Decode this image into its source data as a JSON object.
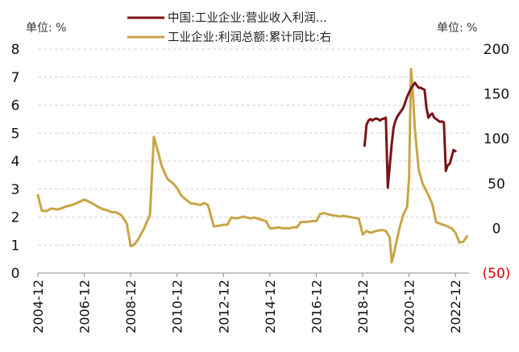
{
  "chart_data": {
    "type": "line",
    "left_unit_label": "单位: %",
    "right_unit_label": "单位: %",
    "legend_position": "top",
    "grid": true,
    "x_tick_labels": [
      "2004-12",
      "2006-12",
      "2008-12",
      "2010-12",
      "2012-12",
      "2014-12",
      "2016-12",
      "2018-12",
      "2020-12",
      "2022-12"
    ],
    "y_left": {
      "ylim": [
        0,
        8
      ],
      "ticks": [
        "0",
        "1",
        "2",
        "3",
        "4",
        "5",
        "6",
        "7",
        "8"
      ]
    },
    "y_right": {
      "ylim": [
        -50,
        200
      ],
      "ticks": [
        "(50)",
        "0",
        "50",
        "100",
        "150",
        "200"
      ],
      "negative_tick_color": "#e00000"
    },
    "series": [
      {
        "name": "中国:工业企业:营业收入利润...",
        "axis": "left",
        "color": "#7a1416",
        "x": [
          2019.0,
          2019.083,
          2019.167,
          2019.25,
          2019.333,
          2019.417,
          2019.5,
          2019.583,
          2019.667,
          2019.75,
          2019.833,
          2019.917,
          2020.0,
          2020.167,
          2020.25,
          2020.333,
          2020.417,
          2020.5,
          2020.583,
          2020.667,
          2020.75,
          2020.833,
          2020.917,
          2021.0,
          2021.167,
          2021.25,
          2021.333,
          2021.417,
          2021.5,
          2021.583,
          2021.667,
          2021.75,
          2021.833,
          2021.917,
          2022.0,
          2022.167,
          2022.25,
          2022.333,
          2022.417,
          2022.5,
          2022.583,
          2022.667,
          2022.75,
          2022.833,
          2022.917
        ],
        "values": [
          4.55,
          5.3,
          5.45,
          5.5,
          5.45,
          5.5,
          5.52,
          5.5,
          5.45,
          5.5,
          5.52,
          5.55,
          3.05,
          4.6,
          5.2,
          5.45,
          5.6,
          5.7,
          5.8,
          5.9,
          6.1,
          6.3,
          6.45,
          6.6,
          6.8,
          6.7,
          6.62,
          6.62,
          6.58,
          6.55,
          5.9,
          5.55,
          5.65,
          5.7,
          5.55,
          5.45,
          5.4,
          5.42,
          5.38,
          3.65,
          3.85,
          3.9,
          4.15,
          4.4,
          4.35
        ]
      },
      {
        "name": "工业企业:利润总额:累计同比:右",
        "axis": "right",
        "color": "#c8a545",
        "x": [
          2004.917,
          2005.083,
          2005.25,
          2005.5,
          2005.75,
          2005.917,
          2006.083,
          2006.25,
          2006.5,
          2006.75,
          2006.917,
          2007.083,
          2007.25,
          2007.5,
          2007.75,
          2007.917,
          2008.083,
          2008.25,
          2008.5,
          2008.75,
          2008.917,
          2009.083,
          2009.25,
          2009.5,
          2009.75,
          2009.917,
          2010.083,
          2010.25,
          2010.5,
          2010.75,
          2010.917,
          2011.083,
          2011.25,
          2011.5,
          2011.75,
          2011.917,
          2012.083,
          2012.25,
          2012.5,
          2012.75,
          2012.917,
          2013.083,
          2013.25,
          2013.5,
          2013.75,
          2013.917,
          2014.083,
          2014.25,
          2014.5,
          2014.75,
          2014.917,
          2015.083,
          2015.25,
          2015.5,
          2015.75,
          2015.917,
          2016.083,
          2016.25,
          2016.5,
          2016.75,
          2016.917,
          2017.083,
          2017.25,
          2017.5,
          2017.75,
          2017.917,
          2018.083,
          2018.25,
          2018.5,
          2018.75,
          2018.917,
          2019.083,
          2019.25,
          2019.5,
          2019.75,
          2019.917,
          2020.083,
          2020.167,
          2020.25,
          2020.333,
          2020.5,
          2020.667,
          2020.833,
          2020.917,
          2021.0,
          2021.083,
          2021.167,
          2021.25,
          2021.333,
          2021.5,
          2021.75,
          2021.917,
          2022.083,
          2022.25,
          2022.5,
          2022.75,
          2022.917,
          2023.083,
          2023.25,
          2023.417
        ],
        "values": [
          37,
          20,
          19,
          22,
          21,
          22,
          24,
          25,
          27,
          30,
          32,
          30,
          28,
          24,
          21,
          20,
          18,
          18,
          15,
          5,
          -20,
          -18,
          -12,
          0,
          15,
          102,
          87,
          70,
          55,
          50,
          45,
          37,
          33,
          28,
          27,
          26,
          28,
          26,
          2,
          3,
          4,
          4,
          12,
          11,
          13,
          12,
          11,
          12,
          10,
          8,
          0,
          0,
          1,
          0,
          0,
          1,
          1,
          7,
          7,
          8,
          8,
          16,
          17,
          15,
          14,
          13,
          14,
          13,
          12,
          11,
          -7,
          -3,
          -5,
          -3,
          -2,
          -3,
          -10,
          -38,
          -30,
          -20,
          0,
          15,
          24,
          56,
          178,
          150,
          110,
          88,
          65,
          50,
          37,
          27,
          7,
          5,
          3,
          0,
          -5,
          -16,
          -15,
          -9
        ]
      }
    ]
  }
}
